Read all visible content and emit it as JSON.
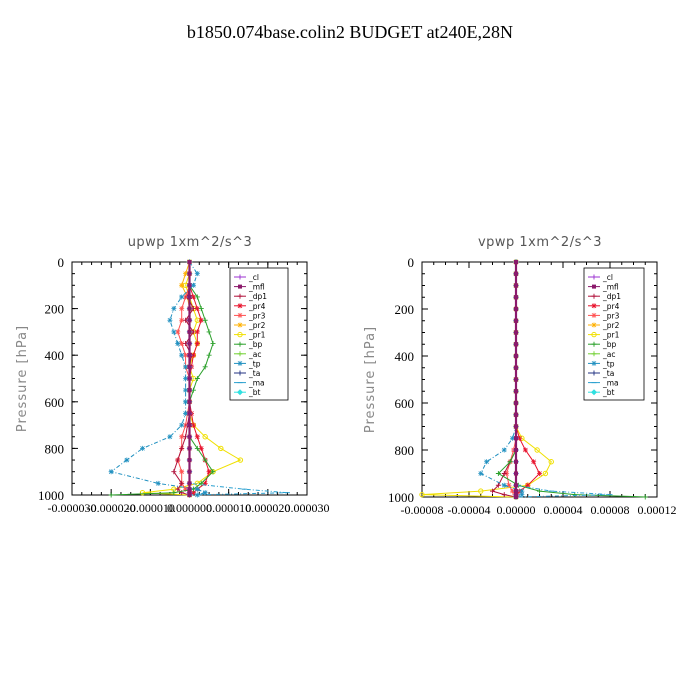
{
  "page_title": "b1850.074base.colin2  BUDGET at240E,28N",
  "legend_items": [
    {
      "name": "_cl",
      "color": "#9b30d0",
      "marker": "plus"
    },
    {
      "name": "_mfl",
      "color": "#8b1a6b",
      "marker": "square"
    },
    {
      "name": "_dp1",
      "color": "#b0103a",
      "marker": "plus"
    },
    {
      "name": "_pr4",
      "color": "#e8102a",
      "marker": "star"
    },
    {
      "name": "_pr3",
      "color": "#ff5050",
      "marker": "star"
    },
    {
      "name": "_pr2",
      "color": "#ffb000",
      "marker": "star"
    },
    {
      "name": "_pr1",
      "color": "#f0e000",
      "marker": "circle"
    },
    {
      "name": "_bp",
      "color": "#2aa02a",
      "marker": "plus"
    },
    {
      "name": "_ac",
      "color": "#70d030",
      "marker": "plus"
    },
    {
      "name": "_tp",
      "color": "#2090c0",
      "marker": "star"
    },
    {
      "name": "_ta",
      "color": "#203080",
      "marker": "plus"
    },
    {
      "name": "_ma",
      "color": "#2aa0d0",
      "marker": "dash"
    },
    {
      "name": "_bt",
      "color": "#30e0e0",
      "marker": "diamond"
    }
  ],
  "chart_data": [
    {
      "type": "line",
      "title": "upwp   1xm^2/s^3",
      "ylabel": "Pressure [hPa]",
      "xlabel": "",
      "ylim": [
        1000,
        0
      ],
      "xlim": [
        -3e-05,
        3e-05
      ],
      "yticks": [
        "0",
        "200",
        "400",
        "600",
        "800",
        "1000"
      ],
      "xticks": [
        "-0.000030",
        "-0.000020",
        "-0.000010",
        "0.000000",
        "0.000010",
        "0.000020",
        "0.000030"
      ],
      "y": [
        0,
        50,
        100,
        150,
        200,
        250,
        300,
        350,
        400,
        450,
        500,
        550,
        600,
        650,
        700,
        750,
        800,
        850,
        900,
        950,
        975,
        990,
        1000
      ],
      "series": [
        {
          "name": "_cl",
          "values": [
            0,
            0,
            0,
            0,
            0,
            0,
            0,
            0,
            0,
            0,
            0,
            0,
            0,
            0,
            0,
            0,
            0,
            0,
            0,
            0,
            0,
            0,
            0
          ]
        },
        {
          "name": "_mfl",
          "values": [
            0,
            0,
            0,
            0,
            0,
            0,
            0,
            0,
            0,
            0,
            0,
            0,
            0,
            0,
            0,
            0,
            0,
            0,
            0,
            0,
            0,
            0,
            0
          ]
        },
        {
          "name": "_dp1",
          "values": [
            0,
            0,
            0,
            -5e-07,
            1e-06,
            -1e-06,
            1e-06,
            -1e-06,
            5e-07,
            0,
            0,
            0,
            0,
            0,
            -5e-07,
            -1e-06,
            -2e-06,
            -3e-06,
            -4e-06,
            -2e-06,
            -3e-06,
            -2e-06,
            0
          ]
        },
        {
          "name": "_pr4",
          "values": [
            0,
            0,
            0,
            1e-06,
            2e-06,
            3e-06,
            2e-06,
            2e-06,
            1e-06,
            5e-07,
            0,
            0,
            0,
            5e-07,
            1e-06,
            2e-06,
            3e-06,
            4e-06,
            5e-06,
            4e-06,
            2e-06,
            1e-06,
            0
          ]
        },
        {
          "name": "_pr3",
          "values": [
            0,
            0,
            0,
            -1e-06,
            -2e-06,
            -2e-06,
            -3e-06,
            -2e-06,
            -1e-06,
            -1e-06,
            0,
            0,
            0,
            -5e-07,
            -1e-06,
            -2e-06,
            -2e-06,
            -3e-06,
            -2e-06,
            -2e-06,
            -1e-06,
            0,
            0
          ]
        },
        {
          "name": "_pr2",
          "values": [
            0,
            -1e-06,
            -2e-06,
            -5e-07,
            0,
            0,
            0,
            0,
            0,
            0,
            0,
            0,
            0,
            0,
            0,
            0,
            0,
            0,
            0,
            0,
            0,
            0,
            0
          ]
        },
        {
          "name": "_pr1",
          "values": [
            0,
            0,
            -1e-06,
            0,
            1e-06,
            2e-06,
            1e-06,
            2e-06,
            1e-06,
            0,
            1e-06,
            0,
            0,
            0,
            1e-06,
            4e-06,
            8e-06,
            1.3e-05,
            6e-06,
            2e-06,
            -4e-06,
            -1.2e-05,
            0
          ]
        },
        {
          "name": "_bp",
          "values": [
            0,
            0,
            0,
            2e-06,
            3e-06,
            4e-06,
            5e-06,
            6e-06,
            5e-06,
            4e-06,
            2e-06,
            1e-06,
            0,
            0,
            0,
            0,
            2e-06,
            4e-06,
            6e-06,
            3e-06,
            1e-06,
            -4e-06,
            -2e-05
          ]
        },
        {
          "name": "_ac",
          "values": [
            0,
            0,
            0,
            0,
            0,
            0,
            0,
            0,
            0,
            0,
            0,
            0,
            0,
            0,
            0,
            0,
            0,
            0,
            0,
            0,
            0,
            0,
            0
          ]
        },
        {
          "name": "_tp",
          "values": [
            0,
            2e-06,
            1e-06,
            -2e-06,
            -4e-06,
            -5e-06,
            -4e-06,
            -3e-06,
            -2e-06,
            -1e-06,
            -1e-06,
            -1e-06,
            -1e-06,
            -1e-06,
            -2e-06,
            -5e-06,
            -1.2e-05,
            -1.6e-05,
            -2e-05,
            -8e-06,
            2e-06,
            4e-06,
            2e-06
          ]
        },
        {
          "name": "_ta",
          "values": [
            0,
            0,
            0,
            0,
            0,
            0,
            0,
            0,
            0,
            0,
            0,
            0,
            0,
            0,
            0,
            0,
            0,
            0,
            0,
            0,
            0,
            0,
            0
          ]
        },
        {
          "name": "_ma",
          "values": [
            0,
            0,
            0,
            0,
            0,
            0,
            0,
            0,
            0,
            0,
            0,
            0,
            0,
            0,
            0,
            0,
            0,
            0,
            0,
            0,
            1.4e-05,
            2.5e-05,
            0
          ]
        },
        {
          "name": "_bt",
          "values": [
            0,
            0,
            0,
            0,
            0,
            0,
            0,
            0,
            0,
            0,
            0,
            0,
            0,
            0,
            0,
            0,
            0,
            0,
            0,
            0,
            0,
            0,
            0
          ]
        }
      ]
    },
    {
      "type": "line",
      "title": "vpwp   1xm^2/s^3",
      "ylabel": "Pressure [hPa]",
      "xlabel": "",
      "ylim": [
        1000,
        0
      ],
      "xlim": [
        -8e-05,
        0.00012
      ],
      "yticks": [
        "0",
        "200",
        "400",
        "600",
        "800",
        "1000"
      ],
      "xticks": [
        "-0.00008",
        "-0.00004",
        "0.00000",
        "0.00004",
        "0.00008",
        "0.00012"
      ],
      "y": [
        0,
        50,
        100,
        150,
        200,
        250,
        300,
        350,
        400,
        450,
        500,
        550,
        600,
        650,
        700,
        750,
        800,
        850,
        900,
        950,
        975,
        990,
        1000
      ],
      "series": [
        {
          "name": "_cl",
          "values": [
            0,
            0,
            0,
            0,
            0,
            0,
            0,
            0,
            0,
            0,
            0,
            0,
            0,
            0,
            0,
            0,
            0,
            0,
            0,
            0,
            0,
            0,
            0
          ]
        },
        {
          "name": "_mfl",
          "values": [
            0,
            0,
            0,
            0,
            0,
            0,
            0,
            0,
            0,
            0,
            0,
            0,
            0,
            0,
            0,
            0,
            0,
            0,
            0,
            0,
            0,
            0,
            0
          ]
        },
        {
          "name": "_dp1",
          "values": [
            0,
            0,
            0,
            0,
            0,
            0,
            0,
            0,
            0,
            0,
            0,
            0,
            0,
            0,
            0,
            0,
            0,
            -5e-06,
            -1e-05,
            -1.5e-05,
            -2e-05,
            -1e-05,
            0
          ]
        },
        {
          "name": "_pr4",
          "values": [
            0,
            0,
            0,
            0,
            0,
            0,
            0,
            0,
            0,
            0,
            0,
            0,
            0,
            0,
            0,
            3e-06,
            8e-06,
            1.5e-05,
            2e-05,
            1e-05,
            3e-06,
            1e-06,
            0
          ]
        },
        {
          "name": "_pr3",
          "values": [
            0,
            0,
            0,
            0,
            0,
            0,
            0,
            0,
            0,
            0,
            0,
            0,
            0,
            0,
            0,
            0,
            -2e-06,
            -5e-06,
            -8e-06,
            -6e-06,
            -3e-06,
            -1e-06,
            0
          ]
        },
        {
          "name": "_pr2",
          "values": [
            0,
            0,
            0,
            0,
            0,
            0,
            0,
            0,
            0,
            0,
            0,
            0,
            0,
            0,
            0,
            0,
            0,
            0,
            0,
            0,
            0,
            0,
            0
          ]
        },
        {
          "name": "_pr1",
          "values": [
            0,
            0,
            0,
            0,
            0,
            0,
            0,
            0,
            0,
            0,
            0,
            0,
            0,
            0,
            0,
            5e-06,
            1.8e-05,
            3e-05,
            2.5e-05,
            1e-05,
            -3e-05,
            -8e-05,
            0
          ]
        },
        {
          "name": "_bp",
          "values": [
            0,
            0,
            0,
            0,
            0,
            0,
            0,
            0,
            0,
            0,
            0,
            0,
            0,
            0,
            0,
            0,
            0,
            -5e-06,
            -1.5e-05,
            2e-06,
            2e-05,
            5e-05,
            0.00011
          ]
        },
        {
          "name": "_ac",
          "values": [
            0,
            0,
            0,
            0,
            0,
            0,
            0,
            0,
            0,
            0,
            0,
            0,
            0,
            0,
            0,
            0,
            0,
            0,
            0,
            0,
            0,
            0,
            0
          ]
        },
        {
          "name": "_tp",
          "values": [
            0,
            0,
            0,
            0,
            0,
            0,
            0,
            0,
            0,
            0,
            0,
            0,
            0,
            0,
            0,
            -3e-06,
            -1e-05,
            -2.5e-05,
            -3e-05,
            -1e-05,
            5e-06,
            5e-06,
            0
          ]
        },
        {
          "name": "_ta",
          "values": [
            0,
            0,
            0,
            0,
            0,
            0,
            0,
            0,
            0,
            0,
            0,
            0,
            0,
            0,
            0,
            0,
            0,
            0,
            0,
            0,
            0,
            0,
            0
          ]
        },
        {
          "name": "_ma",
          "values": [
            0,
            0,
            0,
            0,
            0,
            0,
            0,
            0,
            0,
            0,
            0,
            0,
            0,
            0,
            0,
            0,
            0,
            0,
            0,
            0,
            3e-05,
            8e-05,
            0
          ]
        },
        {
          "name": "_bt",
          "values": [
            0,
            0,
            0,
            0,
            0,
            0,
            0,
            0,
            0,
            0,
            0,
            0,
            0,
            0,
            0,
            0,
            0,
            0,
            0,
            0,
            0,
            0,
            0
          ]
        }
      ]
    }
  ]
}
